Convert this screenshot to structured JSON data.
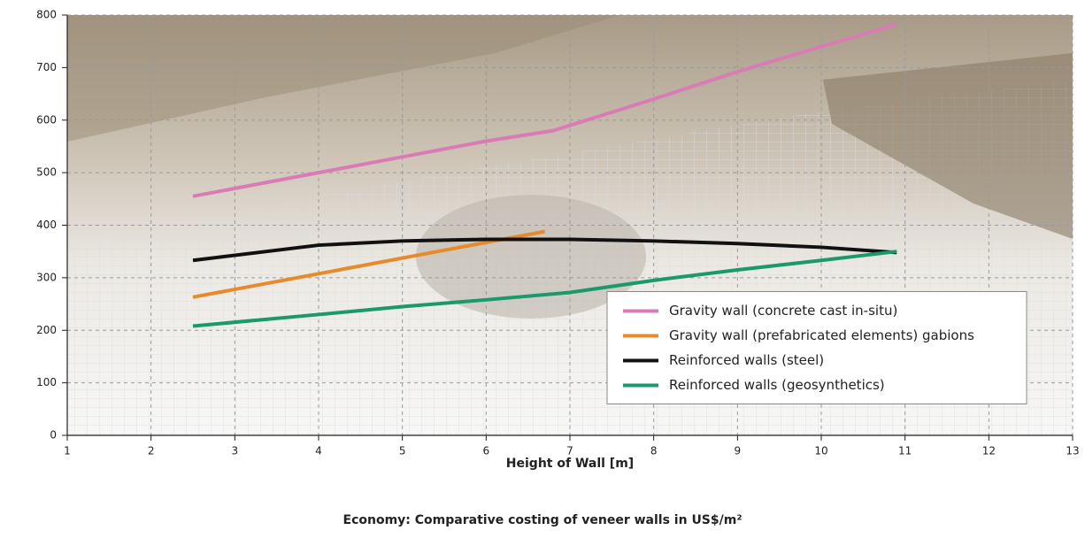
{
  "chart_data": {
    "type": "line",
    "x_label": "Height of Wall [m]",
    "caption": "Economy: Comparative costing of veneer walls in US$/m²",
    "xlim": [
      1,
      13
    ],
    "xticks": [
      1,
      2,
      3,
      4,
      5,
      6,
      7,
      8,
      9,
      10,
      11,
      12,
      13
    ],
    "ylim": [
      0,
      800
    ],
    "yticks": [
      0,
      100,
      200,
      300,
      400,
      500,
      600,
      700,
      800
    ],
    "grid": true,
    "legend": "right",
    "series": [
      {
        "name": "Gravity wall (concrete cast in-situ)",
        "color": "#d97bb5",
        "x": [
          2.5,
          4,
          5,
          6,
          6.8,
          7,
          8,
          9,
          10,
          10.9
        ],
        "values": [
          455,
          500,
          530,
          560,
          580,
          590,
          640,
          692,
          740,
          782
        ]
      },
      {
        "name": "Gravity wall (prefabricated elements) gabions",
        "color": "#e8892b",
        "x": [
          2.5,
          6.7
        ],
        "values": [
          263,
          388
        ]
      },
      {
        "name": "Reinforced walls (steel)",
        "color": "#111111",
        "x": [
          2.5,
          4,
          5,
          6,
          7,
          8,
          9,
          10,
          10.9
        ],
        "values": [
          333,
          362,
          370,
          373,
          373,
          370,
          365,
          358,
          348
        ]
      },
      {
        "name": "Reinforced walls (geosynthetics)",
        "color": "#1a9a6c",
        "x": [
          2.5,
          4,
          5,
          6,
          7,
          8,
          9,
          10,
          10.9
        ],
        "values": [
          208,
          230,
          245,
          258,
          272,
          295,
          315,
          333,
          350
        ]
      }
    ]
  }
}
